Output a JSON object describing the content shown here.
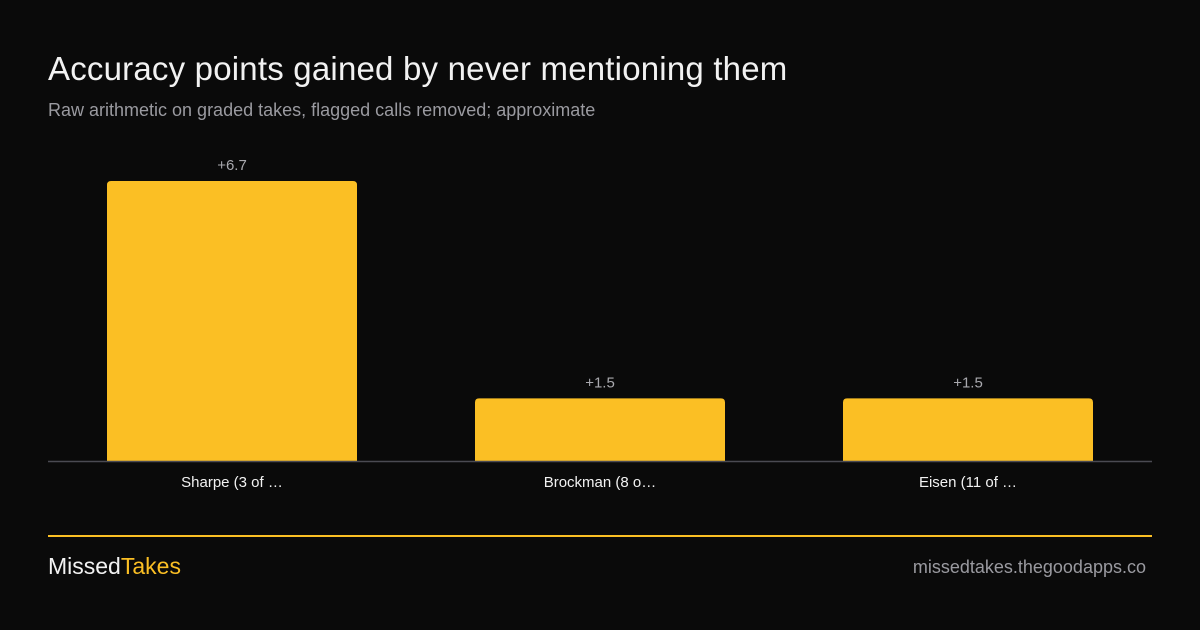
{
  "header": {
    "title": "Accuracy points gained by never mentioning them",
    "subtitle": "Raw arithmetic on graded takes, flagged calls removed; approximate"
  },
  "chart_data": {
    "type": "bar",
    "categories": [
      "Sharpe (3 of …",
      "Brockman (8 o…",
      "Eisen (11 of …"
    ],
    "values": [
      6.7,
      1.5,
      1.5
    ],
    "value_labels": [
      "+6.7",
      "+1.5",
      "+1.5"
    ],
    "ylim": [
      0,
      6.7
    ],
    "grid": false,
    "bar_color": "#fbbf24",
    "axis_color": "#4a4a52"
  },
  "footer": {
    "brand_part1": "Missed",
    "brand_part2": "Takes",
    "url": "missedtakes.thegoodapps.co"
  },
  "colors": {
    "background": "#0a0a0a",
    "accent": "#fbbf24",
    "text": "#f2f2f2",
    "muted": "#9a9aa0"
  }
}
